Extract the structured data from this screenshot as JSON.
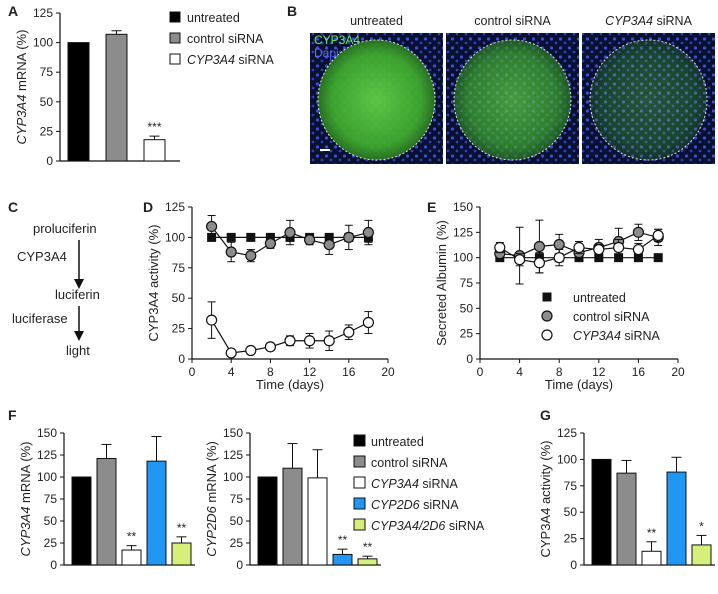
{
  "panels": {
    "A": {
      "label": "A",
      "ylabel_gene": "CYP3A4",
      "ylabel_rest": " mRNA (%)",
      "legend": [
        {
          "text": "untreated",
          "italic": "",
          "color": "#000000"
        },
        {
          "text": "control siRNA",
          "italic": "",
          "color": "#8c8c8c"
        },
        {
          "text": " siRNA",
          "italic": "CYP3A4",
          "color": "#ffffff"
        }
      ]
    },
    "B": {
      "label": "B",
      "headers": [
        {
          "text": "untreated",
          "italic": ""
        },
        {
          "text": "control siRNA",
          "italic": ""
        },
        {
          "text": " siRNA",
          "italic": "CYP3A4"
        }
      ],
      "stain_cyp": "CYP3A4",
      "stain_dapi": "Dapi",
      "brightness": [
        0.95,
        0.72,
        0.35
      ]
    },
    "C": {
      "label": "C",
      "steps": [
        "proluciferin",
        "luciferin",
        "light"
      ],
      "enzymes": [
        "CYP3A4",
        "luciferase"
      ]
    },
    "D": {
      "label": "D"
    },
    "E": {
      "label": "E",
      "legend": [
        {
          "text": "untreated",
          "italic": "",
          "marker": "square"
        },
        {
          "text": "control siRNA",
          "italic": "",
          "marker": "grey-circle"
        },
        {
          "text": " siRNA",
          "italic": "CYP3A4",
          "marker": "open-circle"
        }
      ]
    },
    "F": {
      "label": "F",
      "ylabel1_gene": "CYP3A4",
      "ylabel2_gene": "CYP2D6",
      "ylabel_rest": " mRNA (%)",
      "legend": [
        {
          "text": "untreated",
          "italic": "",
          "color": "#000000"
        },
        {
          "text": "control siRNA",
          "italic": "",
          "color": "#8c8c8c"
        },
        {
          "text": " siRNA",
          "italic": "CYP3A4",
          "color": "#ffffff"
        },
        {
          "text": " siRNA",
          "italic": "CYP2D6",
          "color": "#2196f3"
        },
        {
          "text": " siRNA",
          "italic": "CYP3A4/2D6",
          "color": "#d4f07a"
        }
      ]
    },
    "G": {
      "label": "G"
    }
  },
  "chart_data": [
    {
      "panel": "A",
      "type": "bar",
      "ylabel": "CYP3A4 mRNA (%)",
      "categories": [
        "untreated",
        "control siRNA",
        "CYP3A4 siRNA"
      ],
      "values": [
        100,
        107,
        18
      ],
      "errors": [
        0,
        3,
        3
      ],
      "significance": [
        "",
        "",
        "***"
      ],
      "colors": [
        "#000000",
        "#8c8c8c",
        "#ffffff"
      ],
      "ylim": [
        0,
        125
      ],
      "yticks": [
        0,
        25,
        50,
        75,
        100,
        125
      ]
    },
    {
      "panel": "D",
      "type": "line",
      "xlabel": "Time (days)",
      "ylabel": "CYP3A4 activity (%)",
      "xlim": [
        0,
        20
      ],
      "xticks": [
        0,
        4,
        8,
        12,
        16,
        20
      ],
      "ylim": [
        0,
        125
      ],
      "yticks": [
        0,
        25,
        50,
        75,
        100,
        125
      ],
      "series": [
        {
          "name": "untreated",
          "marker": "square",
          "x": [
            2,
            4,
            6,
            8,
            10,
            12,
            14,
            16,
            18
          ],
          "y": [
            100,
            100,
            100,
            100,
            100,
            100,
            100,
            100,
            100
          ],
          "err": [
            0,
            0,
            0,
            0,
            3,
            3,
            3,
            3,
            4
          ]
        },
        {
          "name": "control siRNA",
          "marker": "grey-circle",
          "x": [
            2,
            4,
            6,
            8,
            10,
            12,
            14,
            16,
            18
          ],
          "y": [
            109,
            88,
            85,
            95,
            104,
            98,
            94,
            100,
            104
          ],
          "err": [
            9,
            8,
            5,
            4,
            10,
            4,
            8,
            10,
            10
          ]
        },
        {
          "name": "CYP3A4 siRNA",
          "marker": "open-circle",
          "x": [
            2,
            4,
            6,
            8,
            10,
            12,
            14,
            16,
            18
          ],
          "y": [
            32,
            5,
            7,
            10,
            15,
            15,
            15,
            22,
            30
          ],
          "err": [
            15,
            2,
            2,
            3,
            4,
            6,
            8,
            6,
            9
          ]
        }
      ]
    },
    {
      "panel": "E",
      "type": "line",
      "xlabel": "Time (days)",
      "ylabel": "Secreted Albumin (%)",
      "xlim": [
        0,
        20
      ],
      "xticks": [
        0,
        4,
        8,
        12,
        16,
        20
      ],
      "ylim": [
        0,
        150
      ],
      "yticks": [
        0,
        25,
        50,
        75,
        100,
        125,
        150
      ],
      "series": [
        {
          "name": "untreated",
          "marker": "square",
          "x": [
            2,
            4,
            6,
            8,
            10,
            12,
            14,
            16,
            18
          ],
          "y": [
            100,
            100,
            100,
            100,
            100,
            100,
            100,
            100,
            100
          ],
          "err": [
            0,
            0,
            0,
            0,
            0,
            0,
            0,
            0,
            0
          ]
        },
        {
          "name": "control siRNA",
          "marker": "grey-circle",
          "x": [
            2,
            4,
            6,
            8,
            10,
            12,
            14,
            16,
            18
          ],
          "y": [
            104,
            102,
            111,
            113,
            105,
            110,
            116,
            125,
            120
          ],
          "err": [
            5,
            28,
            26,
            10,
            6,
            8,
            13,
            8,
            8
          ]
        },
        {
          "name": "CYP3A4 siRNA",
          "marker": "open-circle",
          "x": [
            2,
            4,
            6,
            8,
            10,
            12,
            14,
            16,
            18
          ],
          "y": [
            110,
            98,
            95,
            100,
            110,
            108,
            110,
            108,
            122
          ],
          "err": [
            5,
            6,
            10,
            8,
            6,
            5,
            8,
            6,
            6
          ]
        }
      ]
    },
    {
      "panel": "F",
      "type": "bar",
      "ylabel": "CYP3A4 mRNA (%)",
      "categories": [
        "untreated",
        "control siRNA",
        "CYP3A4 siRNA",
        "CYP2D6 siRNA",
        "CYP3A4/2D6 siRNA"
      ],
      "values": [
        100,
        121,
        17,
        118,
        25
      ],
      "errors": [
        0,
        16,
        5,
        28,
        7
      ],
      "significance": [
        "",
        "",
        "**",
        "",
        "**"
      ],
      "colors": [
        "#000000",
        "#8c8c8c",
        "#ffffff",
        "#2196f3",
        "#d4f07a"
      ],
      "ylim": [
        0,
        150
      ],
      "yticks": [
        0,
        25,
        50,
        75,
        100,
        125,
        150
      ]
    },
    {
      "panel": "F",
      "type": "bar",
      "ylabel": "CYP2D6 mRNA (%)",
      "categories": [
        "untreated",
        "control siRNA",
        "CYP3A4 siRNA",
        "CYP2D6 siRNA",
        "CYP3A4/2D6 siRNA"
      ],
      "values": [
        100,
        110,
        99,
        12,
        7
      ],
      "errors": [
        0,
        28,
        32,
        6,
        3
      ],
      "significance": [
        "",
        "",
        "",
        "**",
        "**"
      ],
      "colors": [
        "#000000",
        "#8c8c8c",
        "#ffffff",
        "#2196f3",
        "#d4f07a"
      ],
      "ylim": [
        0,
        150
      ],
      "yticks": [
        0,
        25,
        50,
        75,
        100,
        125,
        150
      ]
    },
    {
      "panel": "G",
      "type": "bar",
      "ylabel": "CYP3A4 activity (%)",
      "categories": [
        "untreated",
        "control siRNA",
        "CYP3A4 siRNA",
        "CYP2D6 siRNA",
        "CYP3A4/2D6 siRNA"
      ],
      "values": [
        100,
        87,
        13,
        88,
        19
      ],
      "errors": [
        0,
        12,
        9,
        14,
        9
      ],
      "significance": [
        "",
        "",
        "**",
        "",
        "*"
      ],
      "colors": [
        "#000000",
        "#8c8c8c",
        "#ffffff",
        "#2196f3",
        "#d4f07a"
      ],
      "ylim": [
        0,
        125
      ],
      "yticks": [
        0,
        25,
        50,
        75,
        100,
        125
      ]
    }
  ]
}
